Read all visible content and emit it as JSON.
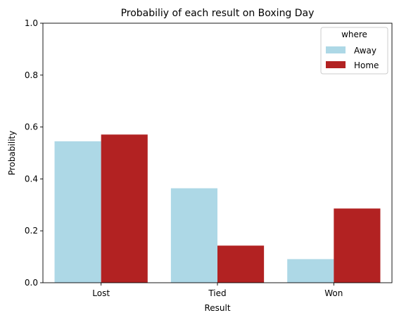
{
  "chart_data": {
    "type": "bar",
    "title": "Probabiliy of each result on Boxing Day",
    "xlabel": "Result",
    "ylabel": "Probability",
    "categories": [
      "Lost",
      "Tied",
      "Won"
    ],
    "series": [
      {
        "name": "Away",
        "color": "#add8e6",
        "values": [
          0.545,
          0.364,
          0.091
        ]
      },
      {
        "name": "Home",
        "color": "#b22222",
        "values": [
          0.571,
          0.143,
          0.286
        ]
      }
    ],
    "ylim": [
      0,
      1
    ],
    "yticks": [
      "0.0",
      "0.2",
      "0.4",
      "0.6",
      "0.8",
      "1.0"
    ],
    "legend": {
      "title": "where",
      "placement": "top-right"
    },
    "grid": false
  }
}
